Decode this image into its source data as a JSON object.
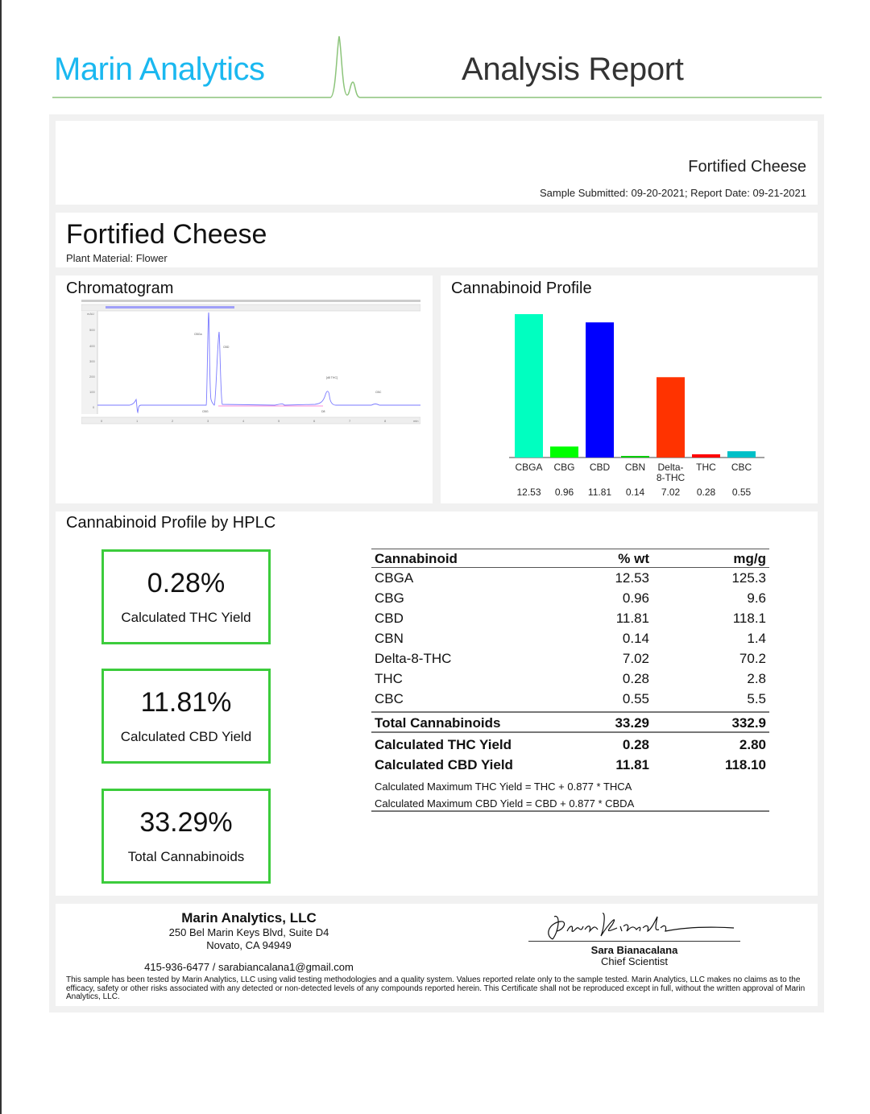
{
  "header": {
    "brand": "Marin Analytics",
    "title": "Analysis Report",
    "accent_color": "#1ab8f0",
    "rule_color": "#8cc47a"
  },
  "summary": {
    "sample_name": "Fortified Cheese",
    "dates": "Sample Submitted: 09-20-2021;  Report Date: 09-21-2021",
    "sample_submitted": "09-20-2021",
    "report_date": "09-21-2021"
  },
  "sample": {
    "name": "Fortified Cheese",
    "plant_material": "Plant Material: Flower"
  },
  "chromatogram": {
    "title": "Chromatogram",
    "y_ticks": [
      "mAU",
      "500",
      "400",
      "300",
      "200",
      "100",
      "0"
    ],
    "x_ticks": [
      "0",
      "1",
      "2",
      "3",
      "4",
      "5",
      "6",
      "7",
      "8",
      "min"
    ],
    "peak_labels": [
      "CBGa",
      "CBD",
      "CBG",
      "D8",
      "[d8 THC]",
      "CBC"
    ]
  },
  "profile": {
    "title": "Cannabinoid Profile"
  },
  "chart_data": {
    "type": "bar",
    "title": "Cannabinoid Profile",
    "categories": [
      "CBGA",
      "CBG",
      "CBD",
      "CBN",
      "Delta-8-THC",
      "THC",
      "CBC"
    ],
    "category_lines": [
      [
        "CBGA"
      ],
      [
        "CBG"
      ],
      [
        "CBD"
      ],
      [
        "CBN"
      ],
      [
        "Delta-",
        "8-THC"
      ],
      [
        "THC"
      ],
      [
        "CBC"
      ]
    ],
    "values": [
      12.53,
      0.96,
      11.81,
      0.14,
      7.02,
      0.28,
      0.55
    ],
    "value_labels": [
      "12.53",
      "0.96",
      "11.81",
      "0.14",
      "7.02",
      "0.28",
      "0.55"
    ],
    "colors": [
      "#00ffc0",
      "#00ff00",
      "#0000ff",
      "#00cc00",
      "#ff3300",
      "#ff0000",
      "#00c0c8"
    ],
    "xlabel": "",
    "ylabel": "",
    "ylim": [
      0,
      12.53
    ],
    "grid": false,
    "legend": "none"
  },
  "hplc": {
    "title": "Cannabinoid Profile by HPLC",
    "kpis": [
      {
        "value": "0.28%",
        "label": "Calculated THC Yield"
      },
      {
        "value": "11.81%",
        "label": "Calculated CBD Yield"
      },
      {
        "value": "33.29%",
        "label": "Total Cannabinoids"
      }
    ],
    "table": {
      "headers": [
        "Cannabinoid",
        "% wt",
        "mg/g"
      ],
      "rows": [
        [
          "CBGA",
          "12.53",
          "125.3"
        ],
        [
          "CBG",
          "0.96",
          "9.6"
        ],
        [
          "CBD",
          "11.81",
          "118.1"
        ],
        [
          "CBN",
          "0.14",
          "1.4"
        ],
        [
          "Delta-8-THC",
          "7.02",
          "70.2"
        ],
        [
          "THC",
          "0.28",
          "2.8"
        ],
        [
          "CBC",
          "0.55",
          "5.5"
        ]
      ],
      "total": [
        "Total Cannabinoids",
        "33.29",
        "332.9"
      ],
      "yields": [
        [
          "Calculated THC Yield",
          "0.28",
          "2.80"
        ],
        [
          "Calculated CBD Yield",
          "11.81",
          "118.10"
        ]
      ],
      "notes": [
        "Calculated Maximum THC Yield = THC + 0.877 * THCA",
        "Calculated Maximum CBD Yield = CBD + 0.877 * CBDA"
      ]
    },
    "kpi_border_color": "#3ccc3c"
  },
  "footer": {
    "company": "Marin Analytics, LLC",
    "address1": "250 Bel Marin Keys Blvd, Suite D4",
    "address2": "Novato, CA 94949",
    "contact": "415-936-6477 / sarabiancalana1@gmail.com",
    "signer_name": "Sara Bianacalana",
    "signer_title": "Chief Scientist",
    "disclaimer": "This sample has been tested by Marin Analytics, LLC using valid testing methodologies and a quality system.  Values reported relate only to the sample tested.  Marin Analytics, LLC makes no claims as to the efficacy, safety or other risks associated with any detected or non-detected levels of any compounds reported herein.  This Certificate shall not be reproduced except in full, without the written approval of Marin Analytics, LLC."
  }
}
